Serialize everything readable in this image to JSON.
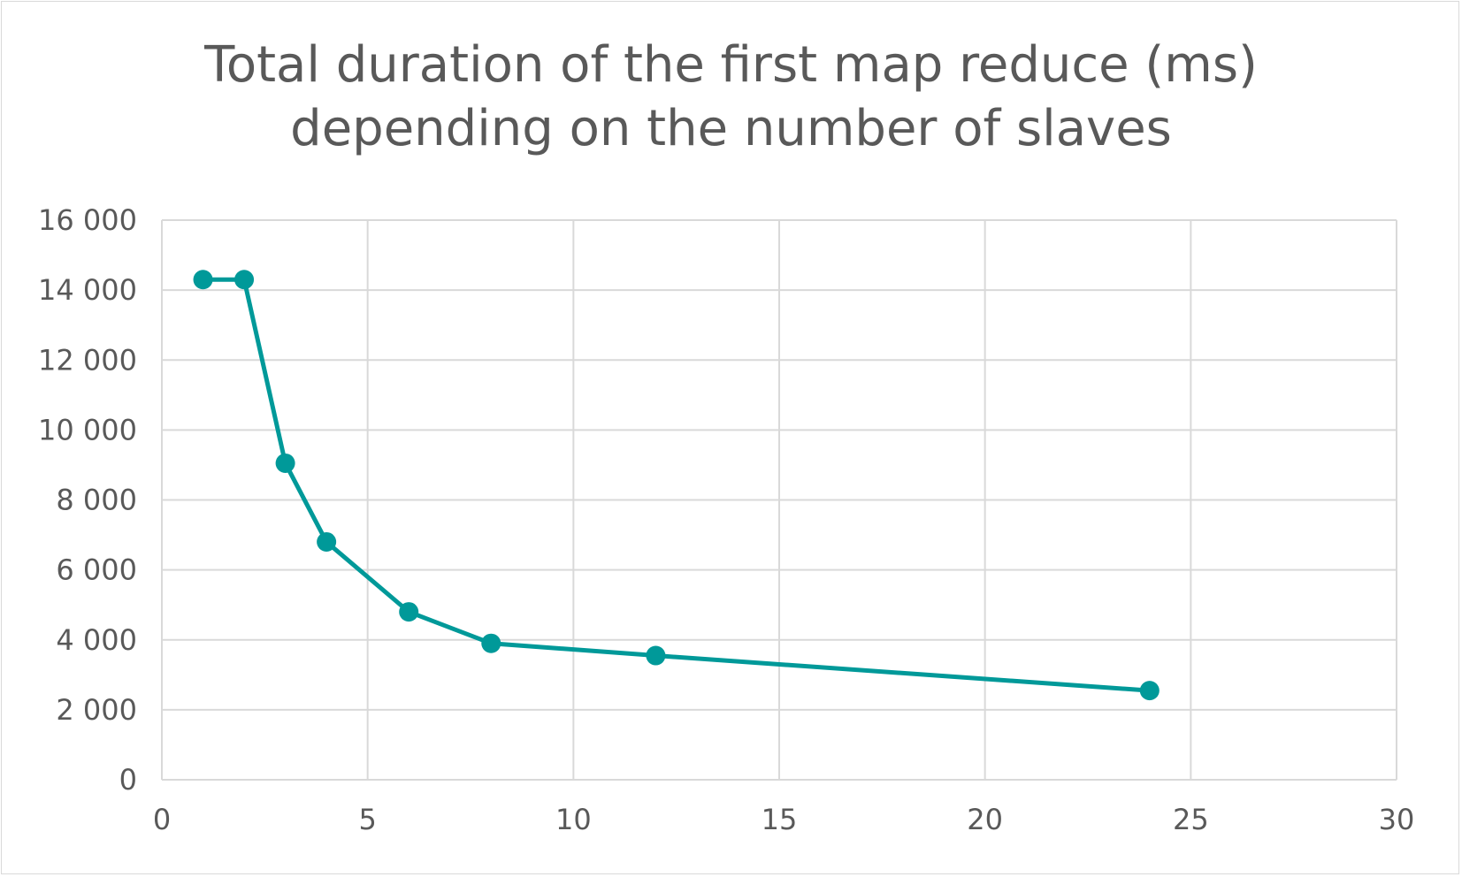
{
  "chart_data": {
    "type": "line",
    "title_lines": [
      "Total duration of the first map reduce (ms)",
      "depending on the number of slaves"
    ],
    "xlabel": "",
    "ylabel": "",
    "xlim": [
      0,
      30
    ],
    "ylim": [
      0,
      16000
    ],
    "x_ticks": [
      0,
      5,
      10,
      15,
      20,
      25,
      30
    ],
    "y_ticks": [
      0,
      2000,
      4000,
      6000,
      8000,
      10000,
      12000,
      14000,
      16000
    ],
    "x_tick_labels": [
      "0",
      "5",
      "10",
      "15",
      "20",
      "25",
      "30"
    ],
    "y_tick_labels": [
      "0",
      "2 000",
      "4 000",
      "6 000",
      "8 000",
      "10 000",
      "12 000",
      "14 000",
      "16 000"
    ],
    "grid": true,
    "legend": "none",
    "series": [
      {
        "color": "#009999",
        "marker": "circle",
        "points": [
          {
            "x": 1,
            "y": 14300
          },
          {
            "x": 2,
            "y": 14300
          },
          {
            "x": 3,
            "y": 9050
          },
          {
            "x": 4,
            "y": 6800
          },
          {
            "x": 6,
            "y": 4800
          },
          {
            "x": 8,
            "y": 3900
          },
          {
            "x": 12,
            "y": 3550
          },
          {
            "x": 24,
            "y": 2550
          }
        ]
      }
    ]
  }
}
